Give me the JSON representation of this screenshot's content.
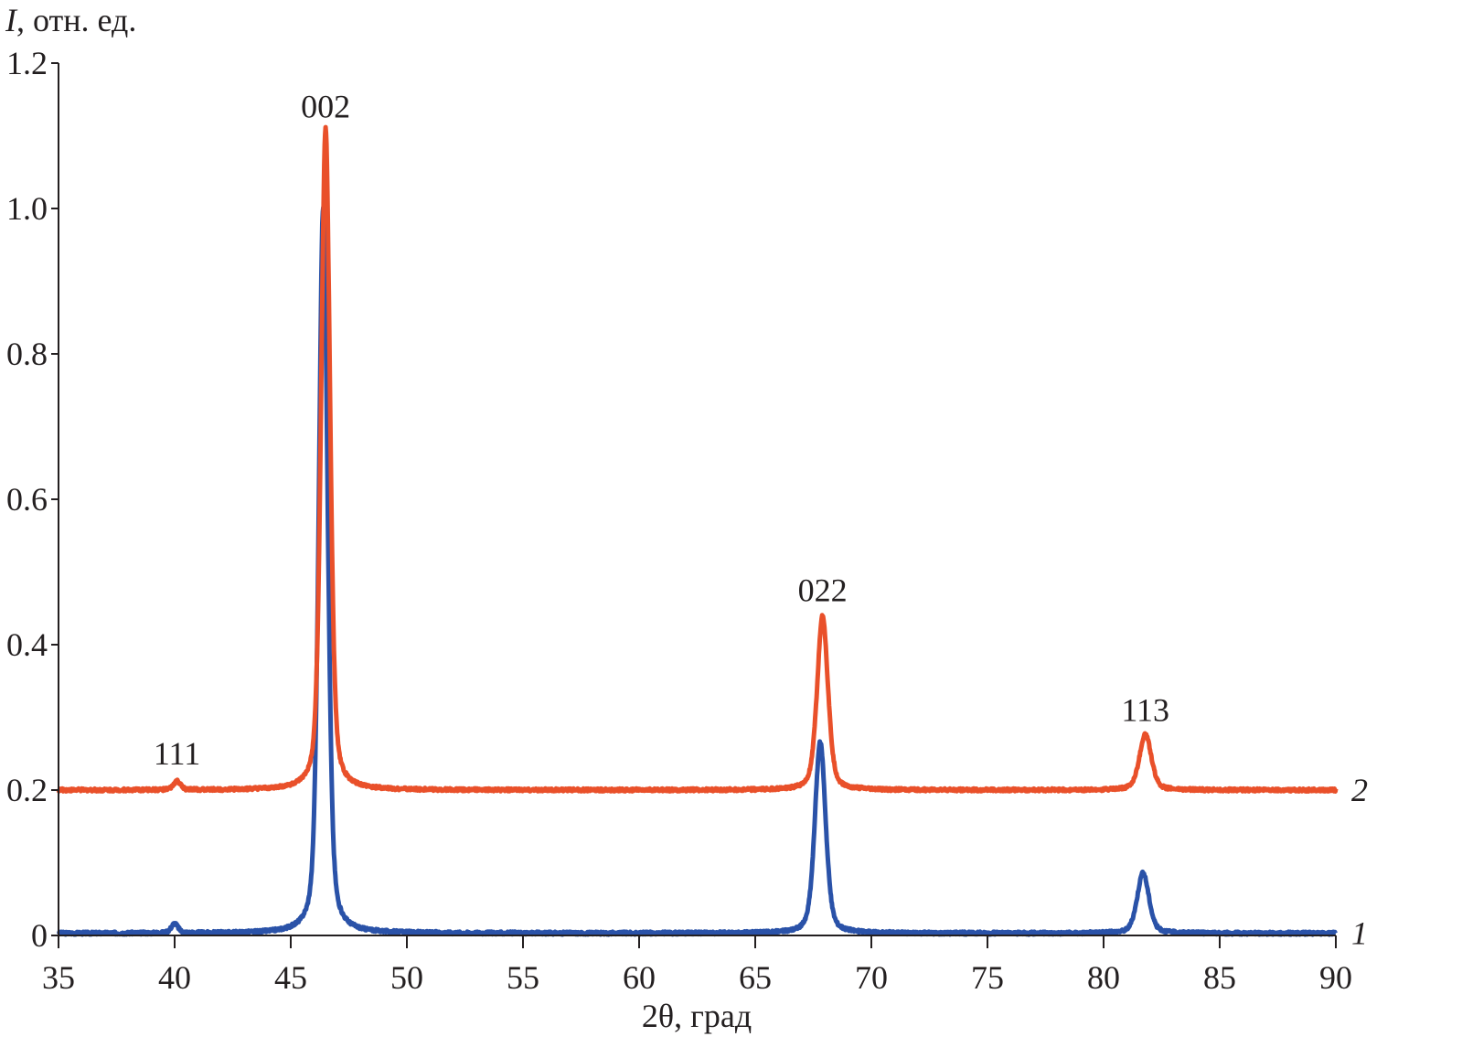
{
  "chart_data": {
    "type": "line",
    "xlabel": "2θ, град",
    "ylabel_italic": "I",
    "ylabel_rest": ", отн. ед.",
    "xlim": [
      35,
      90
    ],
    "ylim": [
      0,
      1.2
    ],
    "xticks": [
      35,
      40,
      45,
      50,
      55,
      60,
      65,
      70,
      75,
      80,
      85,
      90
    ],
    "yticks": [
      {
        "v": 0,
        "label": "0"
      },
      {
        "v": 0.2,
        "label": "0.2"
      },
      {
        "v": 0.4,
        "label": "0.4"
      },
      {
        "v": 0.6,
        "label": "0.6"
      },
      {
        "v": 0.8,
        "label": "0.8"
      },
      {
        "v": 1.0,
        "label": "1.0"
      },
      {
        "v": 1.2,
        "label": "1.2"
      }
    ],
    "grid": false,
    "series": [
      {
        "name": "1",
        "color": "#2a52a8",
        "baseline": 0.003,
        "peaks": [
          {
            "x": 40.0,
            "height": 0.013,
            "fwhm": 0.35
          },
          {
            "x": 46.4,
            "height": 1.0,
            "fwhm": 0.45
          },
          {
            "x": 67.8,
            "height": 0.263,
            "fwhm": 0.55
          },
          {
            "x": 81.7,
            "height": 0.083,
            "fwhm": 0.6
          }
        ]
      },
      {
        "name": "2",
        "color": "#e9502a",
        "baseline": 0.2,
        "peaks": [
          {
            "x": 40.1,
            "height": 0.012,
            "fwhm": 0.35
          },
          {
            "x": 46.5,
            "height": 0.91,
            "fwhm": 0.45
          },
          {
            "x": 67.9,
            "height": 0.24,
            "fwhm": 0.55
          },
          {
            "x": 81.8,
            "height": 0.077,
            "fwhm": 0.6
          }
        ]
      }
    ],
    "annotations": [
      {
        "text": "111",
        "x": 40.1,
        "y": 0.235
      },
      {
        "text": "002",
        "x": 46.5,
        "y": 1.125
      },
      {
        "text": "022",
        "x": 67.9,
        "y": 0.46
      },
      {
        "text": "113",
        "x": 81.8,
        "y": 0.295
      }
    ]
  }
}
